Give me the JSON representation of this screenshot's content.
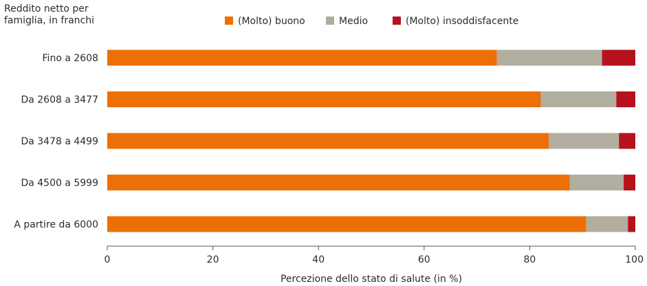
{
  "chart_data": {
    "type": "bar",
    "orientation": "horizontal",
    "stacked": true,
    "ylabel": "Reddito netto per famiglia, in franchi",
    "xlabel": "Percezione dello stato di salute (in %)",
    "categories": [
      "Fino a 2608",
      "Da 2608 a 3477",
      "Da 3478 a 4499",
      "Da 4500 a 5999",
      "A partire da 6000"
    ],
    "series": [
      {
        "name": "(Molto) buono",
        "color": "#ec7006",
        "values": [
          73.8,
          82.1,
          83.6,
          87.6,
          90.7
        ]
      },
      {
        "name": "Medio",
        "color": "#b1aea0",
        "values": [
          19.9,
          14.3,
          13.3,
          10.2,
          7.9
        ]
      },
      {
        "name": "(Molto) insoddisfacente",
        "color": "#b5121b",
        "values": [
          6.3,
          3.6,
          3.1,
          2.2,
          1.4
        ]
      }
    ],
    "xlim": [
      0,
      100
    ],
    "xticks": [
      0,
      20,
      40,
      60,
      80,
      100
    ],
    "legend_position": "top",
    "grid": false
  }
}
